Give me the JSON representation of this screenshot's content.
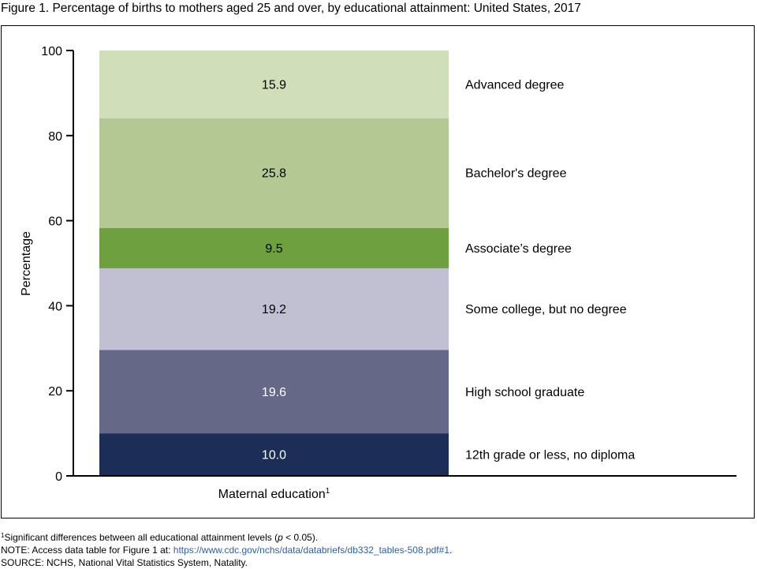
{
  "title": "Figure 1. Percentage of births to mothers aged 25 and over, by educational attainment: United States, 2017",
  "chart_data": {
    "type": "bar",
    "stacked": true,
    "ylabel": "Percentage",
    "xlabel": "Maternal education",
    "xlabel_superscript": "1",
    "ylim": [
      0,
      100
    ],
    "yticks": [
      "0",
      "20",
      "40",
      "60",
      "80",
      "100"
    ],
    "grid": false,
    "legend_position": "right",
    "series": [
      {
        "name": "12th grade or less, no diploma",
        "value": 10.0,
        "label": "10.0",
        "color": "#1c2d57",
        "label_color": "#ffffff"
      },
      {
        "name": "High school graduate",
        "value": 19.6,
        "label": "19.6",
        "color": "#656886",
        "label_color": "#ffffff"
      },
      {
        "name": "Some college, but no degree",
        "value": 19.2,
        "label": "19.2",
        "color": "#c1c0d3",
        "label_color": "#000000"
      },
      {
        "name": "Associate’s degree",
        "value": 9.5,
        "label": "9.5",
        "color": "#6ea040",
        "label_color": "#000000"
      },
      {
        "name": "Bachelor's degree",
        "value": 25.8,
        "label": "25.8",
        "color": "#b3c893",
        "label_color": "#000000"
      },
      {
        "name": "Advanced degree",
        "value": 15.9,
        "label": "15.9",
        "color": "#d0deba",
        "label_color": "#000000"
      }
    ]
  },
  "footnotes": {
    "significance_sup": "1",
    "significance_pre": "Significant differences between all educational attainment levels (",
    "significance_italic": "p",
    "significance_post": " < 0.05).",
    "note_prefix": "NOTE: Access data table for Figure 1 at: ",
    "note_link": "https://www.cdc.gov/nchs/data/databriefs/db332_tables-508.pdf#1",
    "note_suffix": ".",
    "source": "SOURCE: NCHS, National Vital Statistics System, Natality."
  }
}
